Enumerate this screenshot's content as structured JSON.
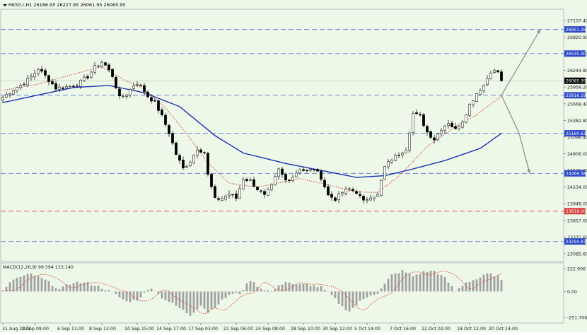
{
  "header": {
    "title": "HK50.r,H1  26186.95 26227.95 26061.95 26065.95"
  },
  "colors": {
    "background": "#eef8e8",
    "border": "#b8bcc0",
    "grid": "#cfd6cc",
    "bull": "#ffffff",
    "bear": "#000000",
    "wick": "#000000",
    "ma_slow": "#1a2fb4",
    "ma_fast": "#d84040",
    "level_line": "#5a78d8",
    "level_box": "#2b48c8",
    "support_line": "#d84a4a",
    "support_box": "#d83a3a",
    "current_price_box": "#000000",
    "projection": "#8a8a8a",
    "macd_hist": "#a0a0a0",
    "macd_signal": "#d84040"
  },
  "chart_data": [
    {
      "type": "candlestick",
      "title": "HK50.r,H1  26186.95 26227.95 26061.95 26065.95",
      "symbol": "HK50.r",
      "timeframe": "H1",
      "ohlc_last": {
        "open": 26186.95,
        "high": 26227.95,
        "low": 26061.95,
        "close": 26065.95
      },
      "ylim": [
        22950,
        27300
      ],
      "y_ticks": [
        "27107.40",
        "26820.90",
        "26534.40",
        "26244.80",
        "25958.20",
        "25668.40",
        "25382.80",
        "25096.40",
        "24806.00",
        "24520.90",
        "24234.00",
        "23948.00",
        "23657.60",
        "23371.60",
        "23085.60"
      ],
      "x_ticks": [
        "31 Aug 2021",
        "2 Sep 09:00",
        "6 Sep 11:00",
        "8 Sep 13:00",
        "10 Sep 15:00",
        "14 Sep 17:00",
        "17 Sep 03:00",
        "21 Sep 06:00",
        "24 Sep 08:00",
        "28 Sep 10:00",
        "30 Sep 12:00",
        "5 Oct 14:00",
        "7 Oct 16:00",
        "12 Oct 02:00",
        "18 Oct 12:00",
        "20 Oct 14:00"
      ],
      "anchor_closes": [
        [
          0,
          25780
        ],
        [
          3,
          25920
        ],
        [
          5,
          25990
        ],
        [
          8,
          26130
        ],
        [
          10,
          26270
        ],
        [
          12,
          26150
        ],
        [
          15,
          25940
        ],
        [
          18,
          25960
        ],
        [
          21,
          26000
        ],
        [
          24,
          26140
        ],
        [
          26,
          26300
        ],
        [
          28,
          26390
        ],
        [
          29,
          26330
        ],
        [
          31,
          26150
        ],
        [
          33,
          25770
        ],
        [
          35,
          25840
        ],
        [
          37,
          25990
        ],
        [
          38,
          26030
        ],
        [
          40,
          25890
        ],
        [
          41,
          25800
        ],
        [
          43,
          25690
        ],
        [
          45,
          25450
        ],
        [
          47,
          25170
        ],
        [
          49,
          24800
        ],
        [
          51,
          24550
        ],
        [
          53,
          24680
        ],
        [
          55,
          24900
        ],
        [
          57,
          24830
        ],
        [
          58,
          24440
        ],
        [
          60,
          24020
        ],
        [
          62,
          24040
        ],
        [
          64,
          24120
        ],
        [
          66,
          24040
        ],
        [
          68,
          24380
        ],
        [
          70,
          24340
        ],
        [
          72,
          24200
        ],
        [
          74,
          24080
        ],
        [
          76,
          24250
        ],
        [
          78,
          24530
        ],
        [
          80,
          24350
        ],
        [
          82,
          24420
        ],
        [
          84,
          24550
        ],
        [
          86,
          24500
        ],
        [
          88,
          24550
        ],
        [
          90,
          24400
        ],
        [
          92,
          24090
        ],
        [
          94,
          24030
        ],
        [
          96,
          24140
        ],
        [
          98,
          24200
        ],
        [
          100,
          24150
        ],
        [
          102,
          23980
        ],
        [
          104,
          24080
        ],
        [
          106,
          24090
        ],
        [
          108,
          24580
        ],
        [
          110,
          24720
        ],
        [
          112,
          24800
        ],
        [
          114,
          24900
        ],
        [
          116,
          25500
        ],
        [
          118,
          25450
        ],
        [
          120,
          25180
        ],
        [
          122,
          25060
        ],
        [
          124,
          25240
        ],
        [
          126,
          25350
        ],
        [
          128,
          25220
        ],
        [
          130,
          25380
        ],
        [
          132,
          25650
        ],
        [
          134,
          25850
        ],
        [
          136,
          25990
        ],
        [
          138,
          26230
        ],
        [
          140,
          26220
        ],
        [
          141,
          26066
        ]
      ],
      "series": [
        {
          "name": "MA slow",
          "style": "solid",
          "anchors": [
            [
              0,
              25690
            ],
            [
              20,
              25950
            ],
            [
              30,
              25985
            ],
            [
              40,
              25860
            ],
            [
              50,
              25620
            ],
            [
              60,
              25120
            ],
            [
              68,
              24820
            ],
            [
              80,
              24640
            ],
            [
              90,
              24520
            ],
            [
              100,
              24400
            ],
            [
              108,
              24430
            ],
            [
              115,
              24530
            ],
            [
              125,
              24690
            ],
            [
              135,
              24900
            ],
            [
              141,
              25160
            ]
          ]
        },
        {
          "name": "MA fast",
          "style": "dotted",
          "anchors": [
            [
              0,
              25900
            ],
            [
              10,
              26010
            ],
            [
              20,
              26180
            ],
            [
              28,
              26310
            ],
            [
              34,
              26090
            ],
            [
              40,
              25920
            ],
            [
              46,
              25600
            ],
            [
              52,
              25150
            ],
            [
              58,
              24650
            ],
            [
              64,
              24300
            ],
            [
              72,
              24230
            ],
            [
              84,
              24380
            ],
            [
              92,
              24270
            ],
            [
              100,
              24150
            ],
            [
              106,
              24140
            ],
            [
              112,
              24420
            ],
            [
              120,
              24930
            ],
            [
              128,
              25280
            ],
            [
              134,
              25480
            ],
            [
              141,
              25800
            ]
          ]
        }
      ],
      "levels": [
        {
          "value": 26951.26,
          "label": "26951.26",
          "kind": "resistance"
        },
        {
          "value": 26535.0,
          "label": "26535.00",
          "kind": "resistance"
        },
        {
          "value": 25816.19,
          "label": "25816.19",
          "kind": "pivot"
        },
        {
          "value": 25160.63,
          "label": "25160.63",
          "kind": "support"
        },
        {
          "value": 24469.58,
          "label": "24469.58",
          "kind": "support"
        },
        {
          "value": 23818.0,
          "label": "23818.00",
          "kind": "support-red"
        },
        {
          "value": 23294.97,
          "label": "23294.97",
          "kind": "support"
        }
      ],
      "current_price": {
        "value": 26065.95,
        "label": "26065.95"
      },
      "projections": [
        {
          "from": [
            141,
            25816.19
          ],
          "to": [
            152,
            26951.26
          ]
        },
        {
          "from": [
            141,
            25816.19
          ],
          "to": [
            146,
            25160.63
          ],
          "continue_to": [
            149,
            24469.58
          ]
        }
      ],
      "grid": true
    },
    {
      "type": "macd",
      "title": "MACD(12,26,9) 99.594 133.140",
      "params": "12,26,9",
      "values": {
        "main": 99.594,
        "signal": 133.14
      },
      "ylim": [
        -251.706,
        222.906
      ],
      "y_ticks": [
        "222.906",
        "0.00",
        "-251.706"
      ],
      "hist_anchors": [
        [
          0,
          0
        ],
        [
          3,
          120
        ],
        [
          8,
          170
        ],
        [
          12,
          110
        ],
        [
          16,
          20
        ],
        [
          20,
          90
        ],
        [
          24,
          80
        ],
        [
          27,
          50
        ],
        [
          31,
          -10
        ],
        [
          35,
          -100
        ],
        [
          38,
          -80
        ],
        [
          42,
          40
        ],
        [
          45,
          -60
        ],
        [
          49,
          -140
        ],
        [
          53,
          -230
        ],
        [
          56,
          -130
        ],
        [
          58,
          -200
        ],
        [
          61,
          -120
        ],
        [
          64,
          -30
        ],
        [
          67,
          -20
        ],
        [
          70,
          110
        ],
        [
          73,
          30
        ],
        [
          76,
          0
        ],
        [
          80,
          100
        ],
        [
          83,
          60
        ],
        [
          86,
          70
        ],
        [
          90,
          40
        ],
        [
          93,
          -40
        ],
        [
          96,
          -150
        ],
        [
          98,
          -190
        ],
        [
          101,
          -100
        ],
        [
          104,
          -30
        ],
        [
          106,
          -20
        ],
        [
          110,
          160
        ],
        [
          113,
          200
        ],
        [
          116,
          150
        ],
        [
          119,
          190
        ],
        [
          122,
          200
        ],
        [
          125,
          130
        ],
        [
          128,
          0
        ],
        [
          131,
          90
        ],
        [
          134,
          120
        ],
        [
          137,
          170
        ],
        [
          140,
          150
        ],
        [
          141,
          100
        ]
      ],
      "signal_lag": 3
    }
  ]
}
